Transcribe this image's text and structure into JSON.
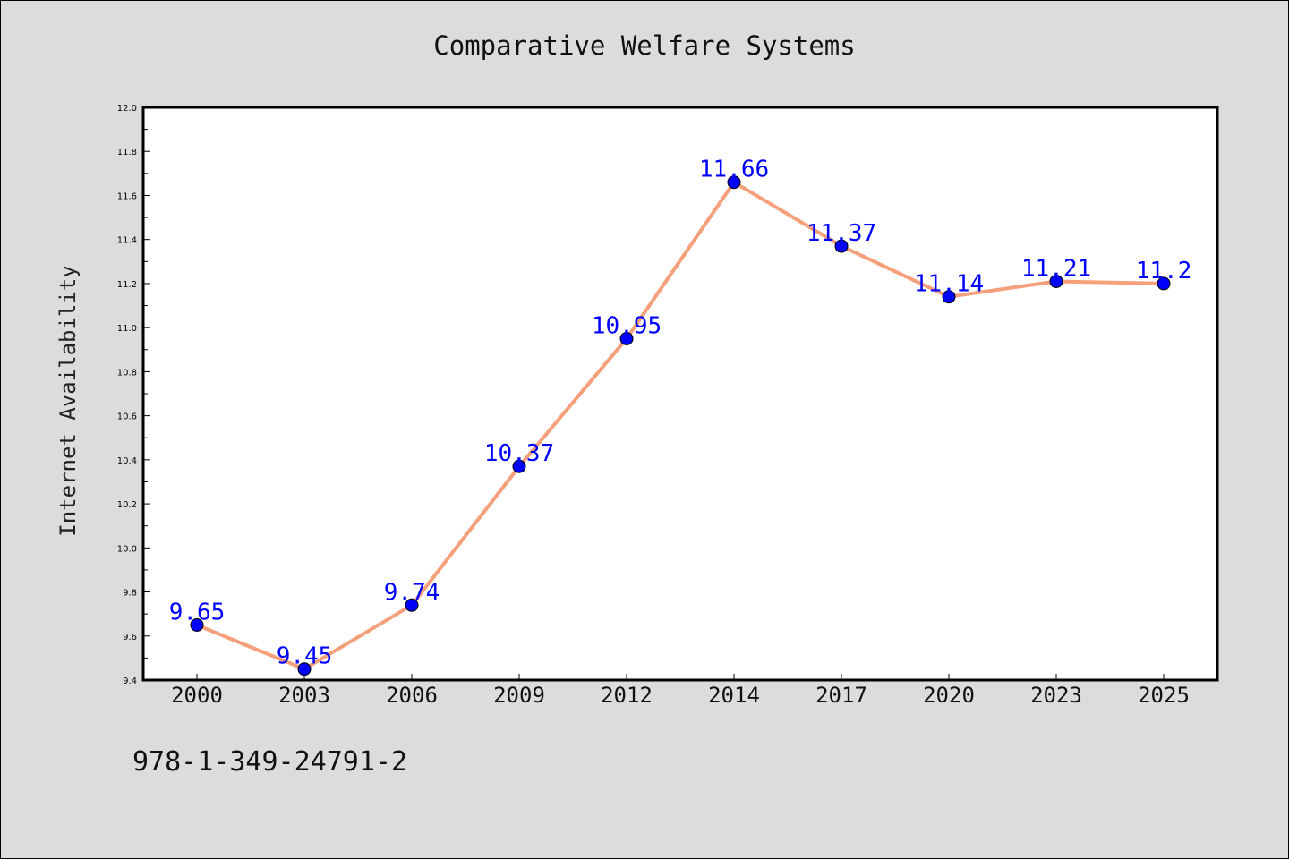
{
  "title": "Comparative Welfare Systems",
  "footer_code": "978-1-349-24791-2",
  "colors": {
    "background": "#dcdcdc",
    "plot_area": "#ffffff",
    "line": "#f5a07a",
    "marker": "#0000ff",
    "data_label": "#0000ff"
  },
  "chart_data": {
    "type": "line",
    "title": "Comparative Welfare Systems",
    "xlabel": "",
    "ylabel": "Internet Availability",
    "categories": [
      "2000",
      "2003",
      "2006",
      "2009",
      "2012",
      "2014",
      "2017",
      "2020",
      "2023",
      "2025"
    ],
    "series": [
      {
        "values": [
          9.65,
          9.45,
          9.74,
          10.37,
          10.95,
          11.66,
          11.37,
          11.14,
          11.21,
          11.2
        ],
        "labels": [
          "9.65",
          "9.45",
          "9.74",
          "10.37",
          "10.95",
          "11.66",
          "11.37",
          "11.14",
          "11.21",
          "11.2"
        ]
      }
    ],
    "ylim": [
      9.4,
      12.0
    ],
    "yticks": [
      "9.4",
      "9.6",
      "9.8",
      "10.0",
      "10.2",
      "10.4",
      "10.6",
      "10.8",
      "11.0",
      "11.2",
      "11.4",
      "11.6",
      "11.8",
      "12.0"
    ],
    "grid": false,
    "legend": "none"
  }
}
